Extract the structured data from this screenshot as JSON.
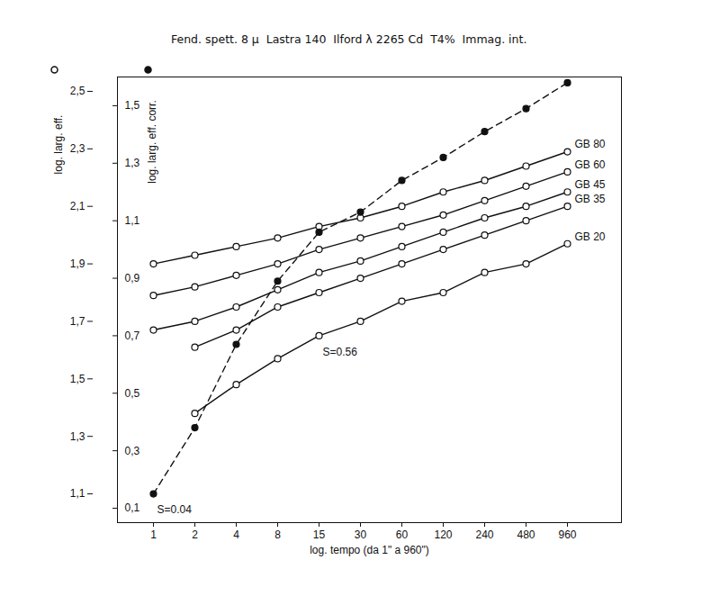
{
  "chart_data": {
    "type": "line",
    "title": "Fend. spett. 8 µ  Lastra 140  Ilford λ 2265 Cd  T4%  Immag. int.",
    "xlabel": "log. tempo (da 1\" a 960\")",
    "ylabel": "log. larg. eff.",
    "categories": [
      "1",
      "2",
      "4",
      "8",
      "15",
      "30",
      "60",
      "120",
      "240",
      "480",
      "960"
    ],
    "ylim": [
      1.0,
      2.55
    ],
    "yticks": [
      {
        "value": 1.1,
        "label": "1,1"
      },
      {
        "value": 1.3,
        "label": "1,3"
      },
      {
        "value": 1.5,
        "label": "1,5"
      },
      {
        "value": 1.7,
        "label": "1,7"
      },
      {
        "value": 1.9,
        "label": "1,9"
      },
      {
        "value": 2.1,
        "label": "2,1"
      },
      {
        "value": 2.3,
        "label": "2,3"
      },
      {
        "value": 2.5,
        "label": "2,5"
      }
    ],
    "y2lim": [
      0.05,
      1.6
    ],
    "y2ticks": [
      {
        "value": 0.1,
        "label": "0,1"
      },
      {
        "value": 0.3,
        "label": "0,3"
      },
      {
        "value": 0.5,
        "label": "0,5"
      },
      {
        "value": 0.7,
        "label": "0,7"
      },
      {
        "value": 0.9,
        "label": "0,9"
      },
      {
        "value": 1.1,
        "label": "1,1"
      },
      {
        "value": 1.3,
        "label": "1,3"
      },
      {
        "value": 1.5,
        "label": "1,5"
      }
    ],
    "grid": false,
    "series": [
      {
        "name": "GB 80",
        "color": "#111111",
        "marker": "circle-open",
        "line_style": "solid",
        "values": [
          1.9,
          1.93,
          1.96,
          1.99,
          2.03,
          2.06,
          2.1,
          2.15,
          2.19,
          2.24,
          2.29
        ]
      },
      {
        "name": "GB 60",
        "color": "#111111",
        "marker": "circle-open",
        "line_style": "solid",
        "values": [
          1.79,
          1.82,
          1.86,
          1.9,
          1.95,
          1.99,
          2.03,
          2.07,
          2.12,
          2.17,
          2.22
        ]
      },
      {
        "name": "GB 45",
        "color": "#111111",
        "marker": "circle-open",
        "line_style": "solid",
        "values": [
          1.67,
          1.7,
          1.75,
          1.81,
          1.87,
          1.91,
          1.96,
          2.01,
          2.06,
          2.1,
          2.15
        ]
      },
      {
        "name": "GB 35",
        "color": "#111111",
        "marker": "circle-open",
        "line_style": "solid",
        "values": [
          null,
          1.61,
          1.67,
          1.75,
          1.8,
          1.85,
          1.9,
          1.95,
          2.0,
          2.05,
          2.1
        ]
      },
      {
        "name": "GB 20",
        "color": "#111111",
        "marker": "circle-open",
        "line_style": "solid",
        "values": [
          null,
          1.38,
          1.48,
          1.57,
          1.65,
          1.7,
          1.77,
          1.8,
          1.87,
          1.9,
          1.97
        ]
      },
      {
        "name": "log. larg. eff. corr.",
        "color": "#111111",
        "marker": "circle-filled",
        "line_style": "dashed",
        "axis": "y2",
        "values": [
          0.15,
          0.38,
          0.67,
          0.89,
          1.06,
          1.13,
          1.24,
          1.32,
          1.41,
          1.49,
          1.58
        ]
      }
    ],
    "annotations": [
      {
        "text": "S=0.56",
        "x": "15",
        "y": 1.65
      },
      {
        "text": "S=0.04",
        "x": "1",
        "y": 0.15,
        "axis": "y2"
      }
    ]
  }
}
